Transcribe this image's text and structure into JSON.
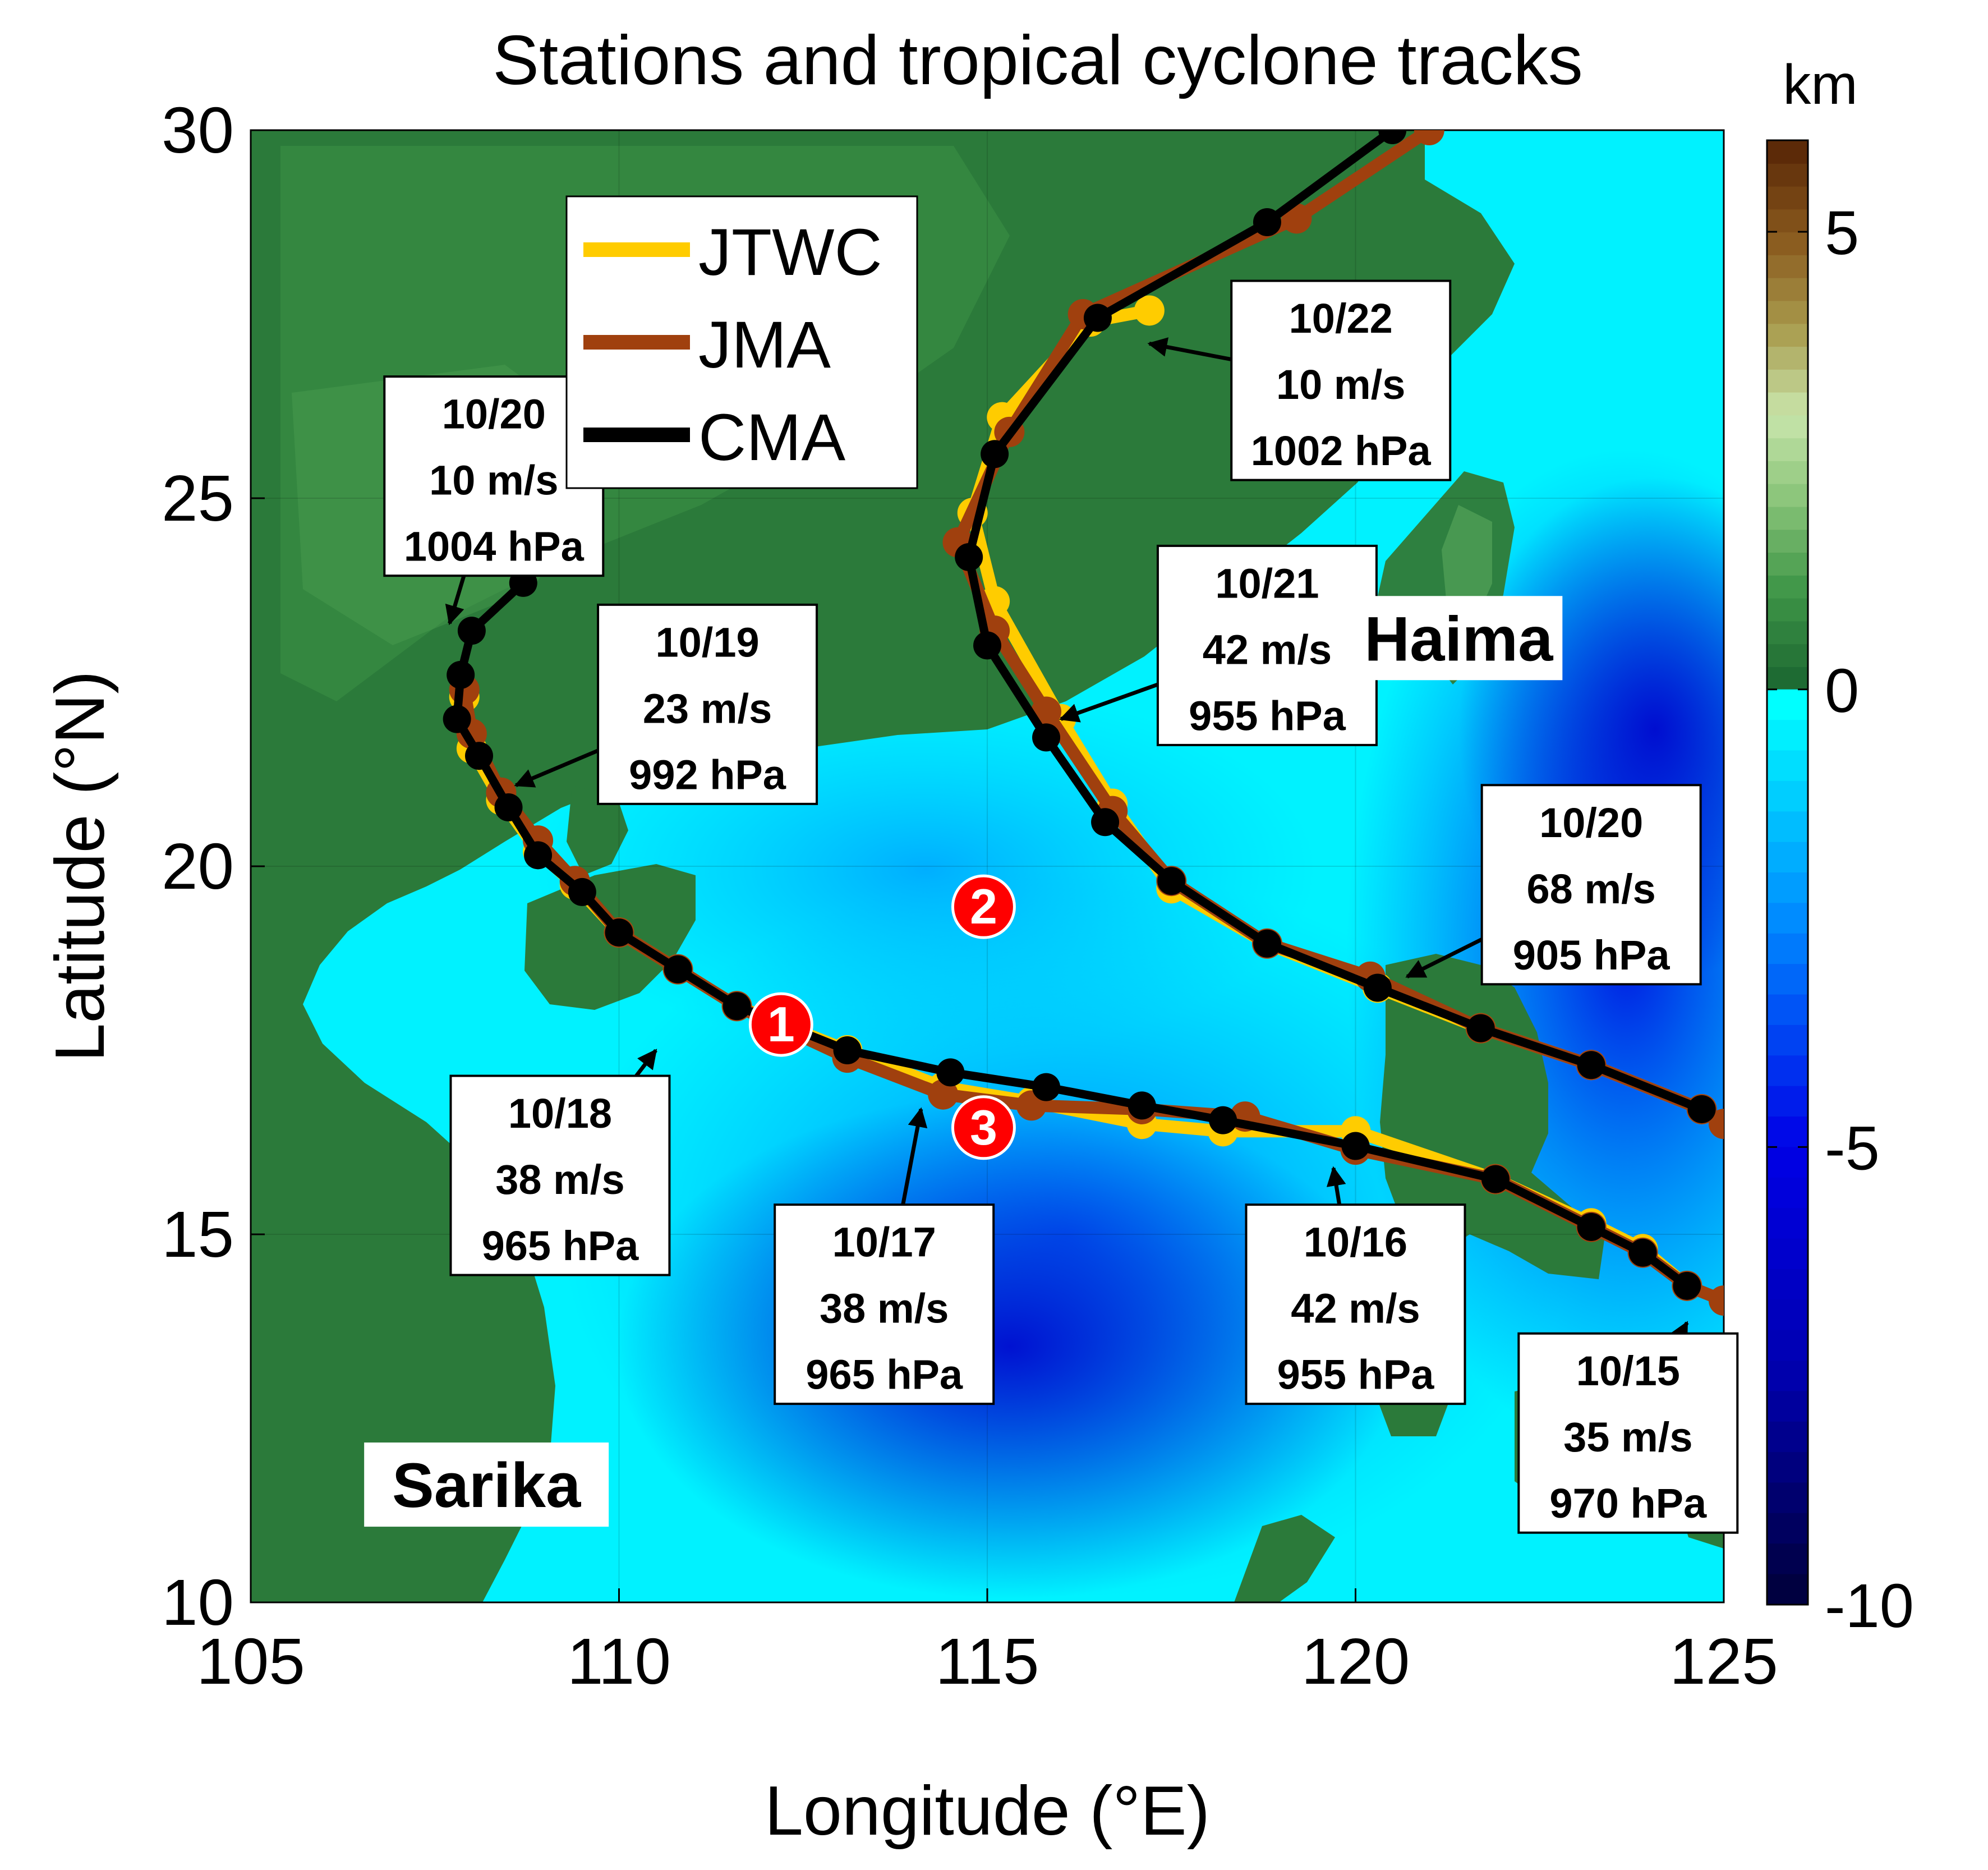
{
  "title": "Stations and tropical cyclone tracks",
  "colorbar": {
    "unit": "km",
    "range": [
      -10,
      6
    ],
    "ticks": [
      5,
      0,
      -5,
      -10
    ],
    "land_stops": [
      "#1e6b33",
      "#3f9648",
      "#87c377",
      "#c9e6ac",
      "#a89a4c",
      "#8a5a1e",
      "#5c2a08"
    ],
    "sea_stops": [
      "#00ffff",
      "#0088ff",
      "#0000e6",
      "#0000b0",
      "#000040"
    ]
  },
  "axes": {
    "xlabel": "Longitude (°E)",
    "ylabel": "Latitude (°N)",
    "xlim": [
      105,
      125
    ],
    "ylim": [
      10,
      30
    ],
    "xticks": [
      105,
      110,
      115,
      120,
      125
    ],
    "yticks": [
      10,
      15,
      20,
      25,
      30
    ]
  },
  "legend": {
    "placement": "upper-left",
    "items": [
      {
        "label": "JTWC",
        "color": "#ffcc00"
      },
      {
        "label": "JMA",
        "color": "#a0400e"
      },
      {
        "label": "CMA",
        "color": "#000000"
      }
    ]
  },
  "storms": [
    {
      "label": "Haima",
      "lon": 121.4,
      "lat": 23.1
    },
    {
      "label": "Sarika",
      "lon": 108.2,
      "lat": 11.6
    }
  ],
  "stations": [
    {
      "label": "1",
      "lon": 112.2,
      "lat": 17.85
    },
    {
      "label": "2",
      "lon": 114.95,
      "lat": 19.45
    },
    {
      "label": "3",
      "lon": 114.95,
      "lat": 16.45
    }
  ],
  "chart_data": {
    "type": "scatter",
    "x_unit": "°E",
    "y_unit": "°N",
    "series": [
      {
        "name": "Sarika CMA",
        "agency": "CMA",
        "points": [
          [
            124.5,
            14.3
          ],
          [
            123.9,
            14.75
          ],
          [
            123.2,
            15.1
          ],
          [
            121.9,
            15.75
          ],
          [
            120.0,
            16.2
          ],
          [
            118.2,
            16.55
          ],
          [
            117.1,
            16.75
          ],
          [
            115.8,
            17.0
          ],
          [
            114.5,
            17.2
          ],
          [
            113.1,
            17.5
          ],
          [
            111.6,
            18.1
          ],
          [
            110.8,
            18.6
          ],
          [
            110.0,
            19.1
          ],
          [
            109.5,
            19.65
          ],
          [
            108.9,
            20.15
          ],
          [
            108.5,
            20.8
          ],
          [
            108.1,
            21.5
          ],
          [
            107.8,
            22.0
          ],
          [
            107.85,
            22.6
          ],
          [
            108.0,
            23.2
          ],
          [
            108.7,
            23.85
          ]
        ]
      },
      {
        "name": "Sarika JMA",
        "agency": "JMA",
        "points": [
          [
            125.0,
            14.1
          ],
          [
            124.5,
            14.3
          ],
          [
            123.9,
            14.75
          ],
          [
            123.2,
            15.1
          ],
          [
            121.9,
            15.75
          ],
          [
            120.0,
            16.15
          ],
          [
            118.5,
            16.6
          ],
          [
            117.1,
            16.7
          ],
          [
            115.6,
            16.75
          ],
          [
            114.4,
            16.9
          ],
          [
            113.1,
            17.4
          ],
          [
            111.6,
            18.1
          ],
          [
            110.8,
            18.6
          ],
          [
            110.0,
            19.1
          ],
          [
            109.4,
            19.8
          ],
          [
            108.9,
            20.35
          ],
          [
            108.4,
            21.0
          ],
          [
            108.0,
            21.8
          ],
          [
            107.9,
            22.4
          ]
        ]
      },
      {
        "name": "Sarika JTWC",
        "agency": "JTWC",
        "points": [
          [
            124.5,
            14.3
          ],
          [
            123.9,
            14.8
          ],
          [
            123.2,
            15.15
          ],
          [
            121.9,
            15.75
          ],
          [
            120.0,
            16.4
          ],
          [
            118.2,
            16.4
          ],
          [
            117.1,
            16.5
          ],
          [
            115.6,
            16.8
          ],
          [
            114.4,
            17.0
          ],
          [
            113.1,
            17.5
          ],
          [
            111.6,
            18.1
          ],
          [
            110.8,
            18.6
          ],
          [
            110.0,
            19.1
          ],
          [
            109.4,
            19.75
          ],
          [
            108.9,
            20.2
          ],
          [
            108.4,
            20.9
          ],
          [
            108.0,
            21.6
          ],
          [
            107.9,
            22.3
          ]
        ]
      },
      {
        "name": "Haima CMA",
        "agency": "CMA",
        "points": [
          [
            124.7,
            16.7
          ],
          [
            123.2,
            17.3
          ],
          [
            121.7,
            17.8
          ],
          [
            120.3,
            18.35
          ],
          [
            118.8,
            18.95
          ],
          [
            117.5,
            19.8
          ],
          [
            116.6,
            20.6
          ],
          [
            115.8,
            21.75
          ],
          [
            115.0,
            23.0
          ],
          [
            114.75,
            24.2
          ],
          [
            115.1,
            25.6
          ],
          [
            116.5,
            27.45
          ],
          [
            118.8,
            28.75
          ],
          [
            120.5,
            30.0
          ]
        ]
      },
      {
        "name": "Haima JMA",
        "agency": "JMA",
        "points": [
          [
            125.0,
            16.5
          ],
          [
            124.7,
            16.7
          ],
          [
            123.2,
            17.3
          ],
          [
            121.7,
            17.8
          ],
          [
            120.2,
            18.5
          ],
          [
            118.8,
            18.95
          ],
          [
            117.5,
            19.8
          ],
          [
            116.7,
            20.75
          ],
          [
            115.8,
            22.1
          ],
          [
            115.1,
            23.2
          ],
          [
            114.6,
            24.4
          ],
          [
            115.3,
            25.9
          ],
          [
            116.3,
            27.5
          ],
          [
            119.2,
            28.8
          ],
          [
            121.0,
            30.0
          ]
        ]
      },
      {
        "name": "Haima JTWC",
        "agency": "JTWC",
        "points": [
          [
            124.7,
            16.7
          ],
          [
            123.2,
            17.3
          ],
          [
            121.7,
            17.8
          ],
          [
            120.3,
            18.35
          ],
          [
            118.8,
            18.95
          ],
          [
            117.5,
            19.7
          ],
          [
            116.7,
            20.85
          ],
          [
            116.0,
            22.0
          ],
          [
            115.1,
            23.6
          ],
          [
            114.8,
            24.8
          ],
          [
            115.2,
            26.1
          ],
          [
            116.4,
            27.4
          ],
          [
            117.2,
            27.55
          ]
        ]
      }
    ],
    "annotations": [
      {
        "lines": [
          "10/20",
          "10 m/s",
          "1004 hPa"
        ],
        "point": [
          107.7,
          23.3
        ],
        "box_center": [
          108.3,
          25.3
        ]
      },
      {
        "lines": [
          "10/19",
          "23 m/s",
          "992 hPa"
        ],
        "point": [
          108.6,
          21.1
        ],
        "box_center": [
          111.2,
          22.2
        ]
      },
      {
        "lines": [
          "10/18",
          "38 m/s",
          "965 hPa"
        ],
        "point": [
          110.5,
          17.5
        ],
        "box_center": [
          109.2,
          15.8
        ]
      },
      {
        "lines": [
          "10/17",
          "38 m/s",
          "965 hPa"
        ],
        "point": [
          114.1,
          16.7
        ],
        "box_center": [
          113.6,
          14.05
        ]
      },
      {
        "lines": [
          "10/16",
          "42 m/s",
          "955 hPa"
        ],
        "point": [
          119.7,
          15.9
        ],
        "box_center": [
          120.0,
          14.05
        ]
      },
      {
        "lines": [
          "10/15",
          "35 m/s",
          "970 hPa"
        ],
        "point": [
          124.5,
          13.8
        ],
        "box_center": [
          123.7,
          12.3
        ]
      },
      {
        "lines": [
          "10/20",
          "68 m/s",
          "905 hPa"
        ],
        "point": [
          120.7,
          18.5
        ],
        "box_center": [
          123.2,
          19.75
        ]
      },
      {
        "lines": [
          "10/21",
          "42 m/s",
          "955 hPa"
        ],
        "point": [
          116.0,
          22.0
        ],
        "box_center": [
          118.8,
          23.0
        ]
      },
      {
        "lines": [
          "10/22",
          "10 m/s",
          "1002 hPa"
        ],
        "point": [
          117.2,
          27.1
        ],
        "box_center": [
          119.8,
          26.6
        ]
      }
    ]
  }
}
